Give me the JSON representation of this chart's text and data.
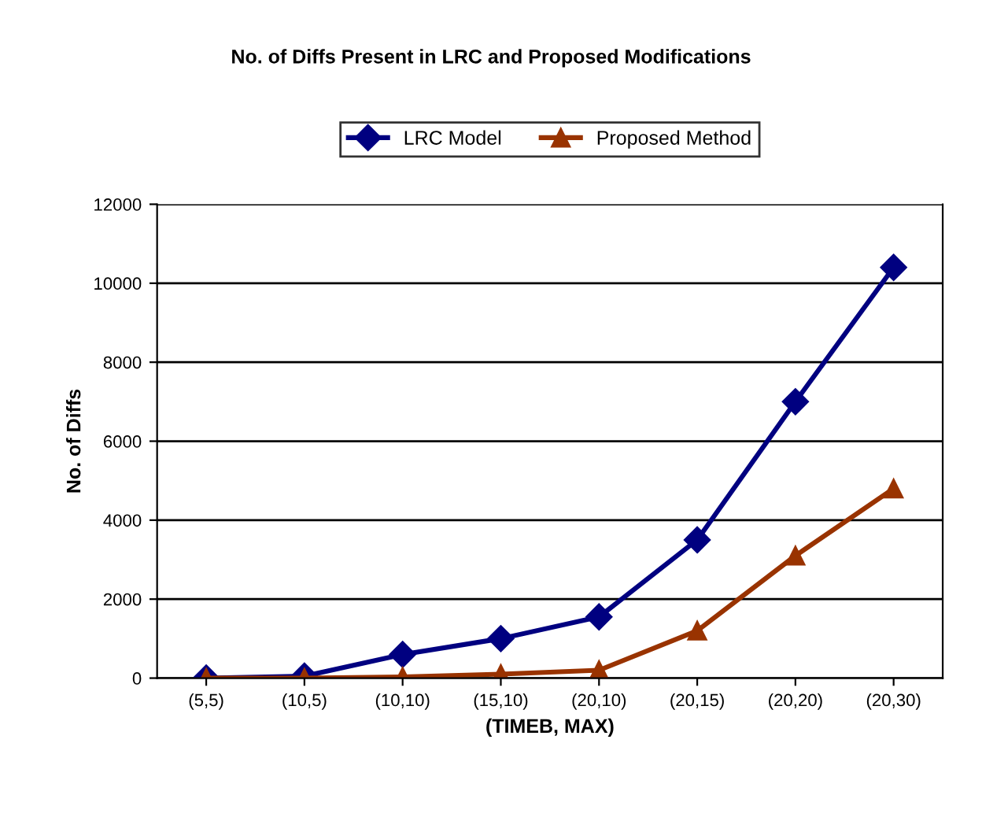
{
  "chart_data": {
    "type": "line",
    "title": "No. of Diffs Present in LRC and Proposed Modifications",
    "xlabel": "(TIMEB, MAX)",
    "ylabel": "No. of Diffs",
    "categories": [
      "(5,5)",
      "(10,5)",
      "(10,10)",
      "(15,10)",
      "(20,10)",
      "(20,15)",
      "(20,20)",
      "(20,30)"
    ],
    "series": [
      {
        "name": "LRC Model",
        "color": "#000080",
        "marker": "diamond",
        "values": [
          0,
          50,
          600,
          1000,
          1550,
          3500,
          7000,
          10400
        ]
      },
      {
        "name": "Proposed Method",
        "color": "#993300",
        "marker": "triangle",
        "values": [
          0,
          0,
          30,
          100,
          200,
          1200,
          3100,
          4800
        ]
      }
    ],
    "ylim": [
      0,
      12000
    ],
    "yticks": [
      0,
      2000,
      4000,
      6000,
      8000,
      10000,
      12000
    ],
    "grid": "y",
    "legend": "top",
    "line_style": "solid"
  }
}
